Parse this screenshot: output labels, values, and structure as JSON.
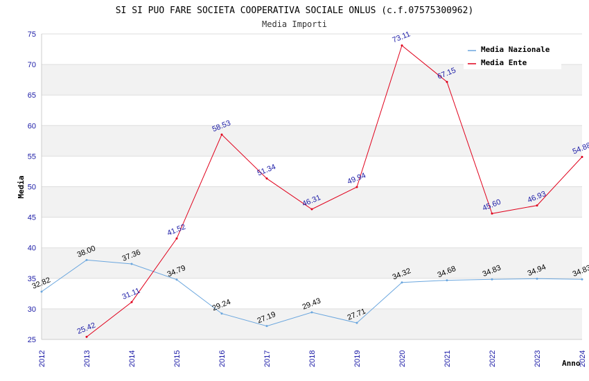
{
  "chart_data": {
    "type": "line",
    "title": "SI SI PUO FARE SOCIETA COOPERATIVA SOCIALE ONLUS (c.f.07575300962)",
    "subtitle": "Media Importi",
    "xlabel": "Anno",
    "ylabel": "Media",
    "ylim": [
      25,
      75
    ],
    "yticks": [
      25,
      30,
      35,
      40,
      45,
      50,
      55,
      60,
      65,
      70,
      75
    ],
    "categories": [
      "2012",
      "2013",
      "2014",
      "2015",
      "2016",
      "2017",
      "2018",
      "2019",
      "2020",
      "2021",
      "2022",
      "2023",
      "2024"
    ],
    "grid": true,
    "legend_position": "top-right",
    "series": [
      {
        "name": "Media Nazionale",
        "color": "#6aa6de",
        "label_color": "#000000",
        "values": [
          32.82,
          38.0,
          37.36,
          34.79,
          29.24,
          27.19,
          29.43,
          27.71,
          34.32,
          34.68,
          34.83,
          34.94,
          34.83
        ],
        "labels": [
          "32.82",
          "38.00",
          "37.36",
          "34.79",
          "29.24",
          "27.19",
          "29.43",
          "27.71",
          "34.32",
          "34.68",
          "34.83",
          "34.94",
          "34.83"
        ]
      },
      {
        "name": "Media Ente",
        "color": "#e0001b",
        "label_color": "#1a1aa6",
        "values": [
          null,
          25.42,
          31.11,
          41.52,
          58.53,
          51.34,
          46.31,
          49.94,
          73.11,
          67.15,
          45.6,
          46.93,
          54.88
        ],
        "labels": [
          null,
          "25.42",
          "31.11",
          "41.52",
          "58.53",
          "51.34",
          "46.31",
          "49.94",
          "73.11",
          "67.15",
          "45.60",
          "46.93",
          "54.88"
        ]
      }
    ]
  }
}
